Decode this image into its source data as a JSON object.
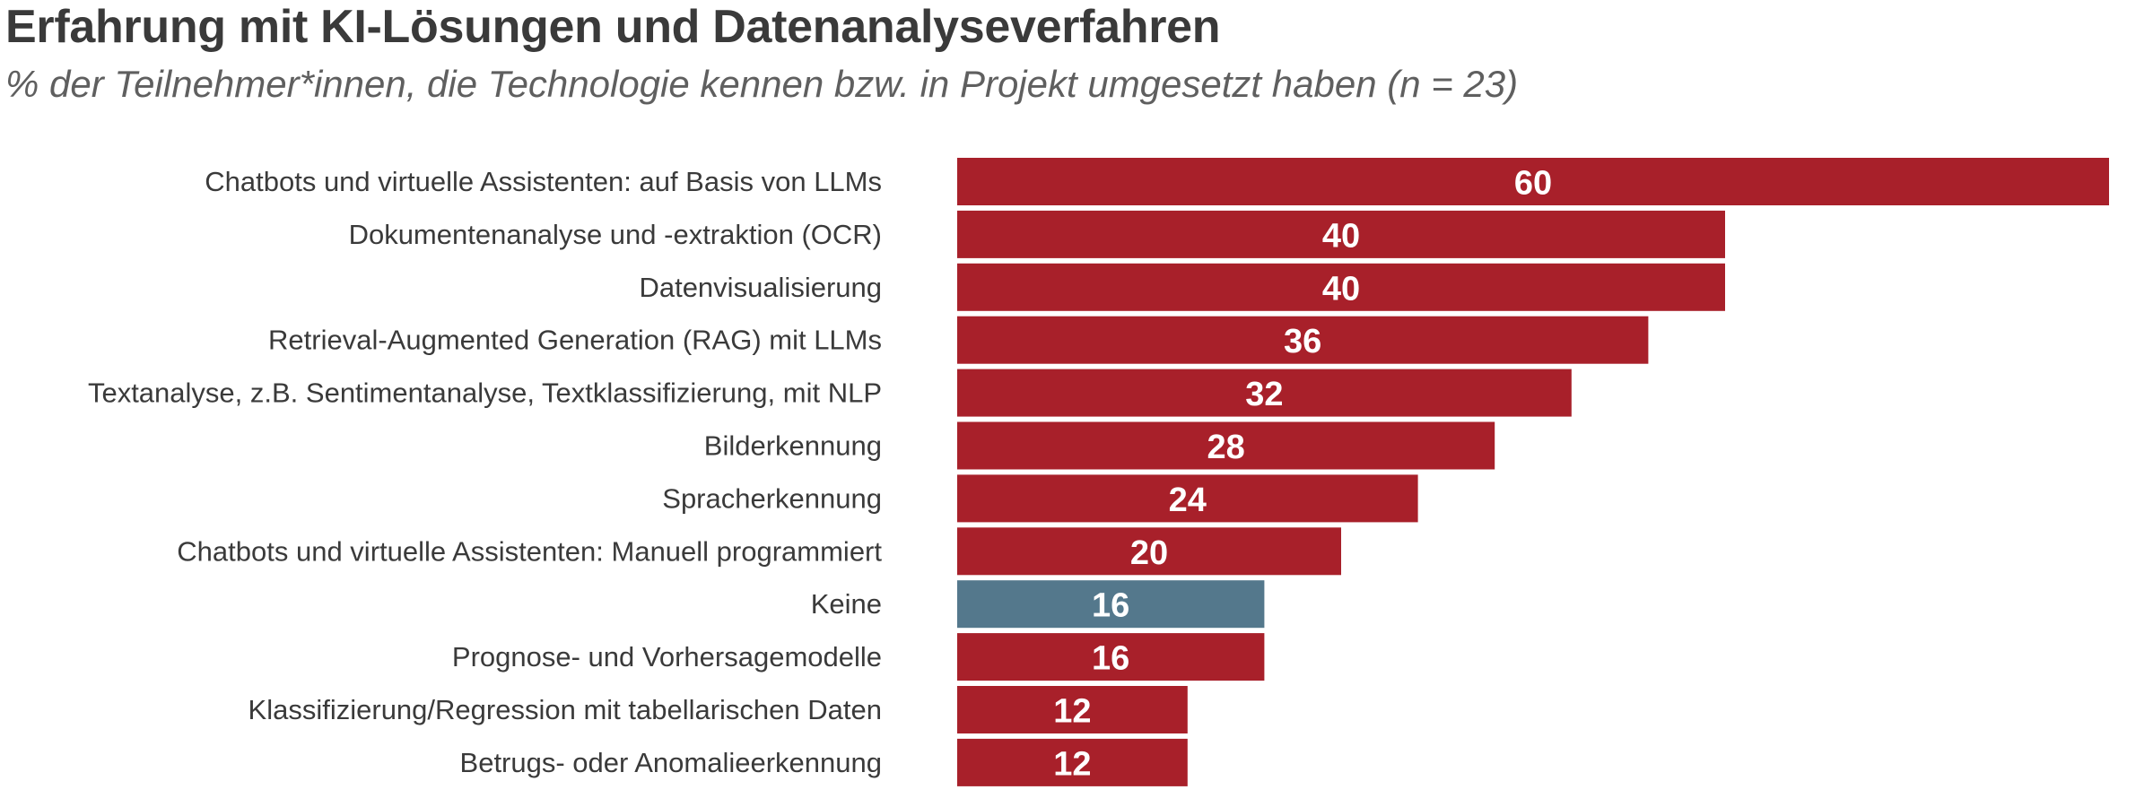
{
  "chart_data": {
    "type": "bar",
    "orientation": "horizontal",
    "title": "Erfahrung mit KI-Lösungen und Datenanalyseverfahren",
    "subtitle": "% der Teilnehmer*innen, die Technologie kennen bzw. in Projekt umgesetzt haben (n = 23)",
    "categories": [
      "Chatbots und virtuelle Assistenten: auf Basis von LLMs",
      "Dokumentenanalyse und -extraktion (OCR)",
      "Datenvisualisierung",
      "Retrieval-Augmented Generation (RAG) mit LLMs",
      "Textanalyse, z.B. Sentimentanalyse, Textklassifizierung, mit NLP",
      "Bilderkennung",
      "Spracherkennung",
      "Chatbots und virtuelle Assistenten: Manuell programmiert",
      "Keine",
      "Prognose- und Vorhersagemodelle",
      "Klassifizierung/Regression mit tabellarischen Daten",
      "Betrugs- oder Anomalieerkennung"
    ],
    "values": [
      60,
      40,
      40,
      36,
      32,
      28,
      24,
      20,
      16,
      16,
      12,
      12
    ],
    "highlight_category": "Keine",
    "xlim": [
      0,
      60
    ],
    "grid": false,
    "data_labels": true
  },
  "colors": {
    "bar": "#a8202a",
    "highlight_bar": "#54788c",
    "label_text": "#ffffff",
    "title_text": "#3a3a3a",
    "subtitle_text": "#5f5f5f"
  }
}
